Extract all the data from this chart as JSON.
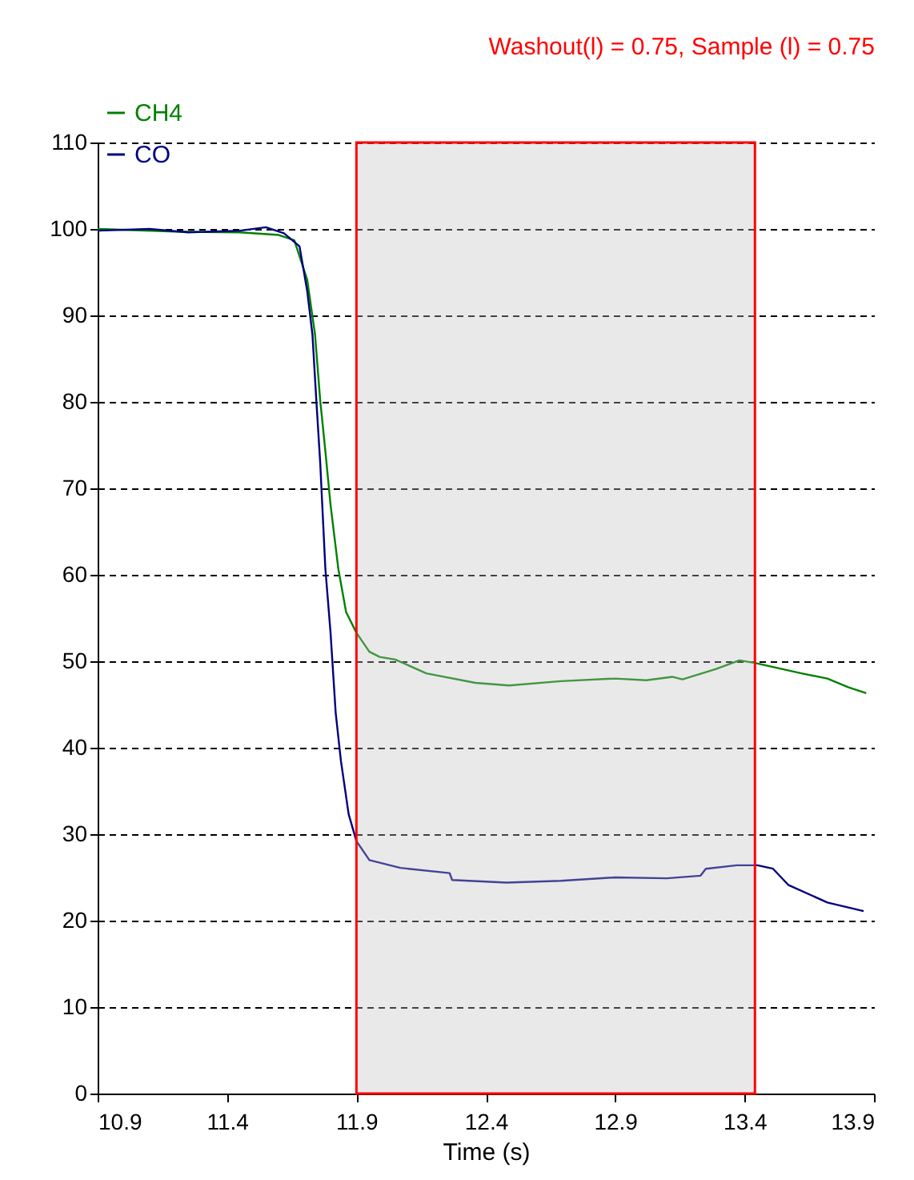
{
  "chart_data": {
    "type": "line",
    "title": "Washout(l) = 0.75, Sample (l) = 0.75",
    "xlabel": "Time (s)",
    "xlim": [
      10.9,
      13.9
    ],
    "xticks": [
      10.9,
      11.4,
      11.9,
      12.4,
      12.9,
      13.4,
      13.9
    ],
    "ylim": [
      0,
      110
    ],
    "yticks": [
      0,
      10,
      20,
      30,
      40,
      50,
      60,
      70,
      80,
      90,
      100,
      110
    ],
    "grid": "y",
    "legend": "top left",
    "bands": [
      {
        "axis": "x",
        "from": 11.9,
        "to": 13.44,
        "color": "#c0c0c0"
      }
    ],
    "series": [
      {
        "name": "CH4",
        "color": "#008000",
        "x": [
          10.9,
          11.2,
          11.45,
          11.6,
          11.66,
          11.71,
          11.74,
          11.76,
          11.78,
          11.8,
          11.83,
          11.86,
          11.9,
          11.95,
          11.99,
          12.05,
          12.17,
          12.36,
          12.49,
          12.69,
          12.9,
          13.02,
          13.12,
          13.16,
          13.29,
          13.38,
          13.44,
          13.62,
          13.72,
          13.8,
          13.87
        ],
        "values": [
          100,
          99.7,
          99.6,
          99.3,
          98.7,
          94.1,
          87.8,
          80.2,
          74.3,
          68.1,
          60.7,
          55.7,
          53.3,
          51.1,
          50.5,
          50.2,
          48.6,
          47.5,
          47.2,
          47.7,
          48.0,
          47.8,
          48.2,
          47.9,
          49.1,
          50.1,
          49.8,
          48.6,
          48.0,
          47.0,
          46.3
        ]
      },
      {
        "name": "CO",
        "color": "#000080",
        "x": [
          10.9,
          11.1,
          11.25,
          11.45,
          11.55,
          11.62,
          11.68,
          11.71,
          11.73,
          11.745,
          11.76,
          11.78,
          11.8,
          11.82,
          11.84,
          11.87,
          11.9,
          11.95,
          12.07,
          12.26,
          12.27,
          12.48,
          12.69,
          12.9,
          13.1,
          13.23,
          13.25,
          13.37,
          13.45,
          13.51,
          13.57,
          13.72,
          13.86
        ],
        "values": [
          99.8,
          100,
          99.6,
          99.8,
          100.2,
          99.5,
          98.0,
          92.8,
          87.8,
          80.2,
          73.0,
          60.7,
          53.3,
          44.0,
          38.5,
          32.3,
          29.2,
          27.0,
          26.1,
          25.5,
          24.7,
          24.4,
          24.6,
          25.0,
          24.9,
          25.2,
          26.0,
          26.4,
          26.4,
          26.0,
          24.1,
          22.1,
          21.1
        ]
      }
    ]
  }
}
